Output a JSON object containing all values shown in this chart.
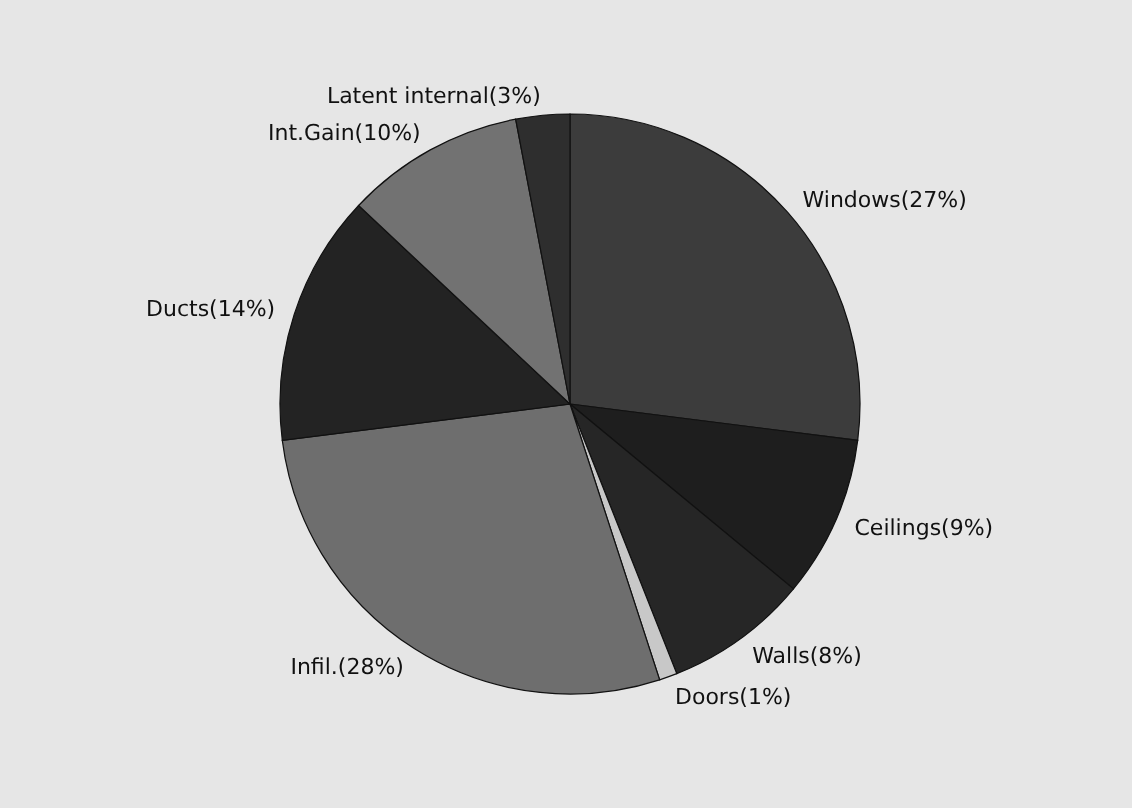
{
  "chart_data": {
    "type": "pie",
    "categories": [
      "Windows(27%)",
      "Ceilings(9%)",
      "Walls(8%)",
      "Doors(1%)",
      "Infil.(28%)",
      "Ducts(14%)",
      "Int.Gain(10%)",
      "Latent internal(3%)"
    ],
    "values": [
      27,
      9,
      8,
      1,
      28,
      14,
      10,
      3
    ],
    "colors": [
      "#3c3c3c",
      "#1e1e1e",
      "#262626",
      "#c8c8c8",
      "#6e6e6e",
      "#232323",
      "#727272",
      "#2e2e2e"
    ]
  }
}
